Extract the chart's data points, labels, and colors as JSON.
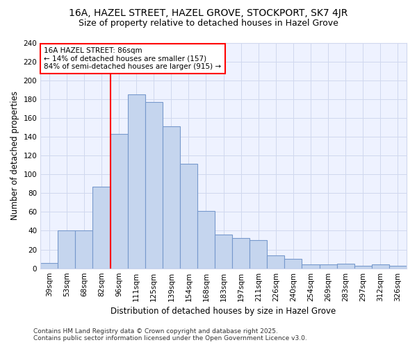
{
  "title": "16A, HAZEL STREET, HAZEL GROVE, STOCKPORT, SK7 4JR",
  "subtitle": "Size of property relative to detached houses in Hazel Grove",
  "xlabel": "Distribution of detached houses by size in Hazel Grove",
  "ylabel": "Number of detached properties",
  "categories": [
    "39sqm",
    "53sqm",
    "68sqm",
    "82sqm",
    "96sqm",
    "111sqm",
    "125sqm",
    "139sqm",
    "154sqm",
    "168sqm",
    "183sqm",
    "197sqm",
    "211sqm",
    "226sqm",
    "240sqm",
    "254sqm",
    "269sqm",
    "283sqm",
    "297sqm",
    "312sqm",
    "326sqm"
  ],
  "bar_heights": [
    6,
    40,
    40,
    87,
    143,
    185,
    177,
    151,
    111,
    61,
    36,
    32,
    30,
    14,
    10,
    4,
    4,
    5,
    3,
    4,
    3
  ],
  "background_color": "#ffffff",
  "plot_bg_color": "#eef2ff",
  "bar_color": "#c5d5ee",
  "bar_edge_color": "#7799cc",
  "grid_color": "#d0d8ee",
  "annotation_text": "16A HAZEL STREET: 86sqm\n← 14% of detached houses are smaller (157)\n84% of semi-detached houses are larger (915) →",
  "footer": "Contains HM Land Registry data © Crown copyright and database right 2025.\nContains public sector information licensed under the Open Government Licence v3.0.",
  "ylim": [
    0,
    240
  ],
  "yticks": [
    0,
    20,
    40,
    60,
    80,
    100,
    120,
    140,
    160,
    180,
    200,
    220,
    240
  ],
  "ref_bar_index": 3,
  "title_fontsize": 10,
  "subtitle_fontsize": 9,
  "axis_label_fontsize": 8.5,
  "tick_fontsize": 7.5,
  "annotation_fontsize": 7.5,
  "footer_fontsize": 6.5
}
